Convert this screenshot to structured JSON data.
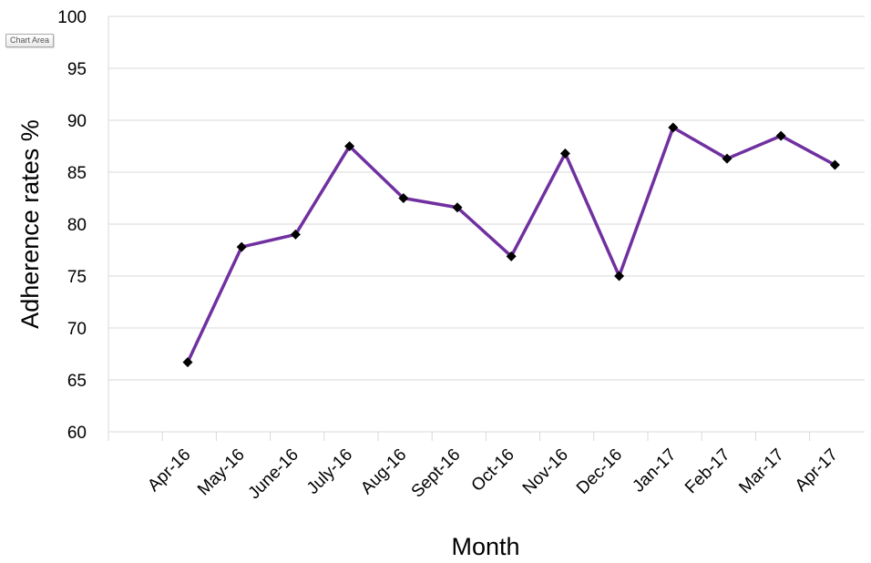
{
  "tooltip": {
    "label": "Chart Area"
  },
  "chart_data": {
    "type": "line",
    "xlabel": "Month",
    "ylabel": "Adherence rates %",
    "ylim": [
      60,
      100
    ],
    "yticks": [
      60,
      65,
      70,
      75,
      80,
      85,
      90,
      95,
      100
    ],
    "grid": true,
    "categories": [
      "Apr-16",
      "May-16",
      "June-16",
      "July-16",
      "Aug-16",
      "Sept-16",
      "Oct-16",
      "Nov-16",
      "Dec-16",
      "Jan-17",
      "Feb-17",
      "Mar-17",
      "Apr-17"
    ],
    "series": [
      {
        "values": [
          66.7,
          77.8,
          79.0,
          87.5,
          82.5,
          81.6,
          76.9,
          86.8,
          75.0,
          89.3,
          86.3,
          88.5,
          85.7
        ],
        "color": "#7030a0",
        "marker": "diamond",
        "marker_color": "#000000"
      }
    ]
  }
}
